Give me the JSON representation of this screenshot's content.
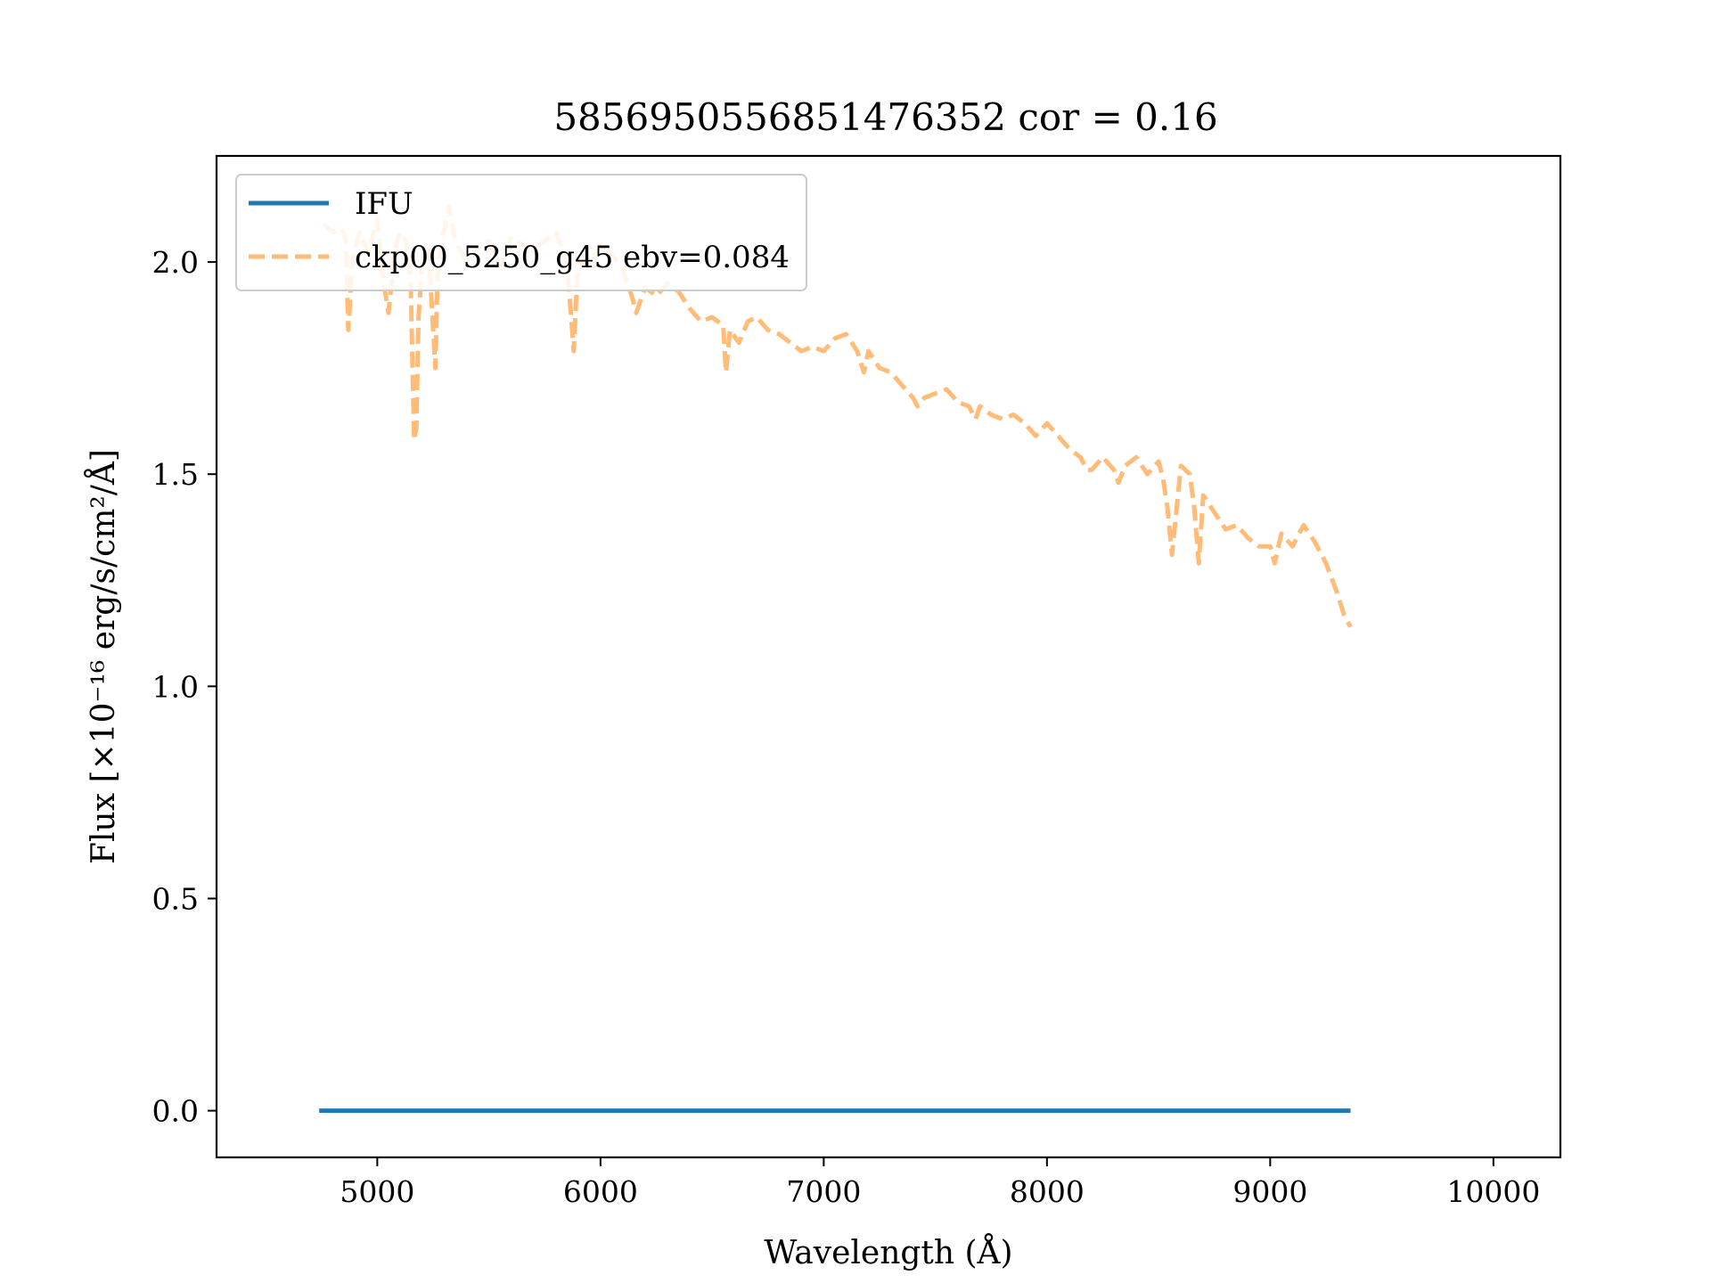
{
  "chart_data": {
    "type": "line",
    "title": "5856950556851476352 cor = 0.16",
    "xlabel": "Wavelength (Å)",
    "ylabel": "Flux [×10⁻¹⁶ erg/s/cm²/Å]",
    "xlim": [
      4280,
      10300
    ],
    "ylim": [
      -0.11,
      2.25
    ],
    "xticks": [
      5000,
      6000,
      7000,
      8000,
      9000,
      10000
    ],
    "xtick_labels": [
      "5000",
      "6000",
      "7000",
      "8000",
      "9000",
      "10000"
    ],
    "yticks": [
      0.0,
      0.5,
      1.0,
      1.5,
      2.0
    ],
    "ytick_labels": [
      "0.0",
      "0.5",
      "1.0",
      "1.5",
      "2.0"
    ],
    "grid": false,
    "legend_position": "top-left",
    "series": [
      {
        "name": "IFU",
        "color": "#1f77b4",
        "style": "solid",
        "x": [
          4740,
          9360
        ],
        "y": [
          0.0,
          0.0
        ]
      },
      {
        "name": "ckp00_5250_g45 ebv=0.084",
        "color": "#ffbb78",
        "style": "dashed",
        "x": [
          4760,
          4800,
          4840,
          4860,
          4870,
          4890,
          4920,
          4960,
          5000,
          5020,
          5050,
          5080,
          5100,
          5130,
          5150,
          5165,
          5175,
          5185,
          5200,
          5230,
          5260,
          5270,
          5290,
          5320,
          5350,
          5400,
          5450,
          5500,
          5550,
          5600,
          5650,
          5700,
          5750,
          5800,
          5850,
          5880,
          5890,
          5900,
          5950,
          6000,
          6050,
          6100,
          6140,
          6160,
          6200,
          6250,
          6300,
          6350,
          6400,
          6450,
          6500,
          6550,
          6562,
          6580,
          6620,
          6660,
          6700,
          6750,
          6800,
          6850,
          6900,
          6950,
          7000,
          7050,
          7100,
          7150,
          7180,
          7200,
          7250,
          7300,
          7350,
          7400,
          7420,
          7450,
          7500,
          7550,
          7600,
          7650,
          7680,
          7700,
          7750,
          7800,
          7850,
          7900,
          7950,
          8000,
          8050,
          8100,
          8150,
          8180,
          8200,
          8250,
          8300,
          8320,
          8350,
          8400,
          8450,
          8500,
          8520,
          8540,
          8560,
          8600,
          8640,
          8660,
          8680,
          8700,
          8750,
          8800,
          8850,
          8900,
          8950,
          9000,
          9020,
          9050,
          9100,
          9150,
          9200,
          9250,
          9300,
          9330,
          9360
        ],
        "y": [
          2.09,
          2.07,
          2.08,
          2.05,
          1.84,
          2.01,
          2.07,
          2.02,
          2.1,
          1.98,
          1.88,
          2.03,
          2.07,
          2.05,
          1.95,
          1.58,
          1.61,
          1.87,
          1.99,
          2.03,
          1.75,
          1.97,
          2.05,
          2.13,
          2.05,
          2.0,
          2.03,
          2.05,
          1.99,
          2.06,
          2.04,
          2.03,
          2.05,
          2.07,
          2.0,
          1.79,
          1.9,
          2.0,
          1.99,
          2.04,
          2.02,
          1.98,
          1.92,
          1.88,
          1.94,
          1.92,
          1.95,
          1.93,
          1.89,
          1.86,
          1.87,
          1.85,
          1.74,
          1.84,
          1.81,
          1.86,
          1.87,
          1.84,
          1.83,
          1.81,
          1.79,
          1.8,
          1.79,
          1.82,
          1.83,
          1.79,
          1.74,
          1.79,
          1.75,
          1.74,
          1.71,
          1.68,
          1.66,
          1.68,
          1.69,
          1.7,
          1.67,
          1.66,
          1.63,
          1.66,
          1.64,
          1.63,
          1.64,
          1.62,
          1.59,
          1.62,
          1.59,
          1.56,
          1.54,
          1.51,
          1.51,
          1.54,
          1.51,
          1.48,
          1.52,
          1.54,
          1.5,
          1.53,
          1.49,
          1.42,
          1.31,
          1.52,
          1.5,
          1.42,
          1.29,
          1.45,
          1.41,
          1.37,
          1.38,
          1.35,
          1.33,
          1.33,
          1.29,
          1.36,
          1.33,
          1.38,
          1.34,
          1.29,
          1.22,
          1.17,
          1.14
        ]
      }
    ]
  }
}
